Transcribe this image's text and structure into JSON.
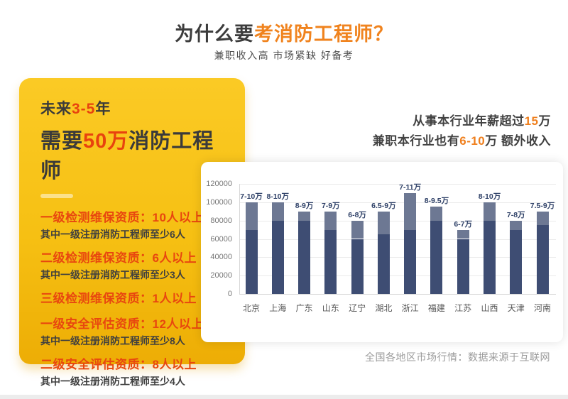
{
  "header": {
    "title_prefix": "为什么要",
    "title_highlight": "考消防工程师？",
    "subtitle": "兼职收入高 市场紧缺 好备考",
    "accent_color": "#f0831e"
  },
  "card": {
    "bg_top": "#fbca25",
    "bg_bottom": "#edad05",
    "accent_color": "#e8430e",
    "line1_pre": "未来",
    "line1_num": "3-5",
    "line1_suf": "年",
    "line2_pre": "需要",
    "line2_num": "50万",
    "line2_suf": "消防工程师",
    "items": [
      {
        "title": "一级检测维保资质：10人以上",
        "sub": "其中一级注册消防工程师至少6人"
      },
      {
        "title": "二级检测维保资质：6人以上",
        "sub": "其中一级注册消防工程师至少3人"
      },
      {
        "title": "三级检测维保资质：1人以上",
        "sub": ""
      },
      {
        "title": "一级安全评估资质：12人以上",
        "sub": "其中一级注册消防工程师至少8人"
      },
      {
        "title": "二级安全评估资质：8人以上",
        "sub": "其中一级注册消防工程师至少4人"
      }
    ]
  },
  "income": {
    "line1_pre": "从事本行业年薪超过",
    "line1_num": "15",
    "line1_suf": "万",
    "line2_pre": "兼职本行业也有",
    "line2_num": "6-10",
    "line2_suf": "万 额外收入",
    "accent_color": "#ef7f1d"
  },
  "chart_data": {
    "type": "bar",
    "subtype": "stacked-salary-range",
    "title": "",
    "xlabel": "",
    "ylabel": "",
    "categories": [
      "北京",
      "上海",
      "广东",
      "山东",
      "辽宁",
      "湖北",
      "浙江",
      "福建",
      "江苏",
      "山西",
      "天津",
      "河南"
    ],
    "bar_labels": [
      "7-10万",
      "8-10万",
      "8-9万",
      "7-9万",
      "6-8万",
      "6.5-9万",
      "7-11万",
      "8-9.5万",
      "6-7万",
      "8-10万",
      "7-8万",
      "7.5-9万"
    ],
    "series": [
      {
        "name": "salary-min",
        "values": [
          70000,
          80000,
          80000,
          70000,
          60000,
          65000,
          70000,
          80000,
          60000,
          80000,
          70000,
          75000
        ]
      },
      {
        "name": "salary-max",
        "values": [
          100000,
          100000,
          90000,
          90000,
          80000,
          90000,
          110000,
          95000,
          70000,
          100000,
          80000,
          90000
        ]
      }
    ],
    "y_ticks": [
      0,
      20000,
      40000,
      60000,
      80000,
      100000,
      120000
    ],
    "ylim": [
      0,
      120000
    ],
    "grid": true,
    "legend": false,
    "colors": {
      "bar_lower": "#3e4d73",
      "bar_upper": "#6d7893",
      "bar_label": "#2e4067",
      "gridline": "#ebebeb",
      "axis": "#d7d7d7"
    }
  },
  "footer": {
    "note": "全国各地区市场行情：数据来源于互联网"
  }
}
